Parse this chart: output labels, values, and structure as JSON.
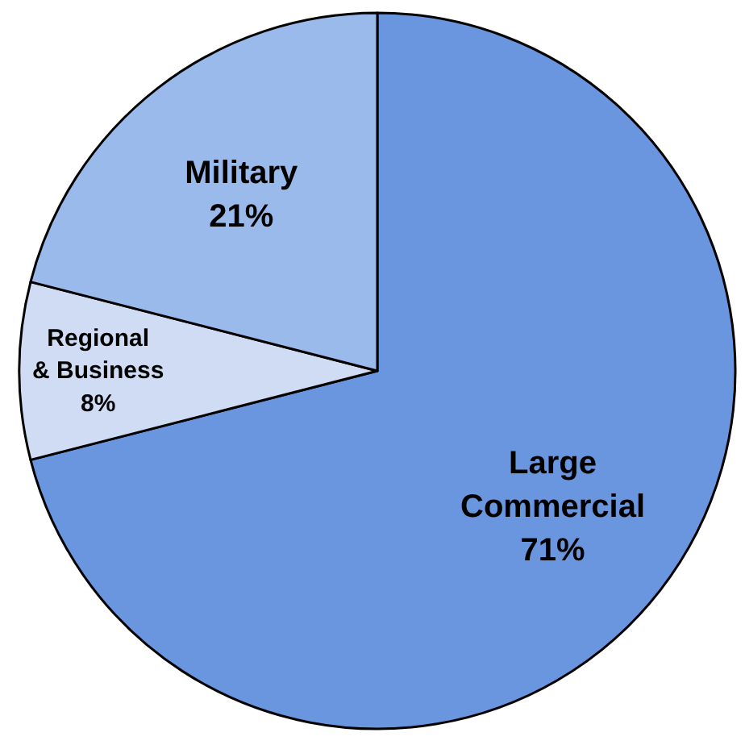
{
  "chart_data": {
    "type": "pie",
    "categories": [
      "Large\nCommercial",
      "Regional\n& Business",
      "Military"
    ],
    "values": [
      71,
      8,
      21
    ],
    "value_labels": [
      "71%",
      "8%",
      "21%"
    ],
    "colors": [
      "#6a96e0",
      "#cfdcf4",
      "#9bbaec"
    ],
    "legend": false
  }
}
